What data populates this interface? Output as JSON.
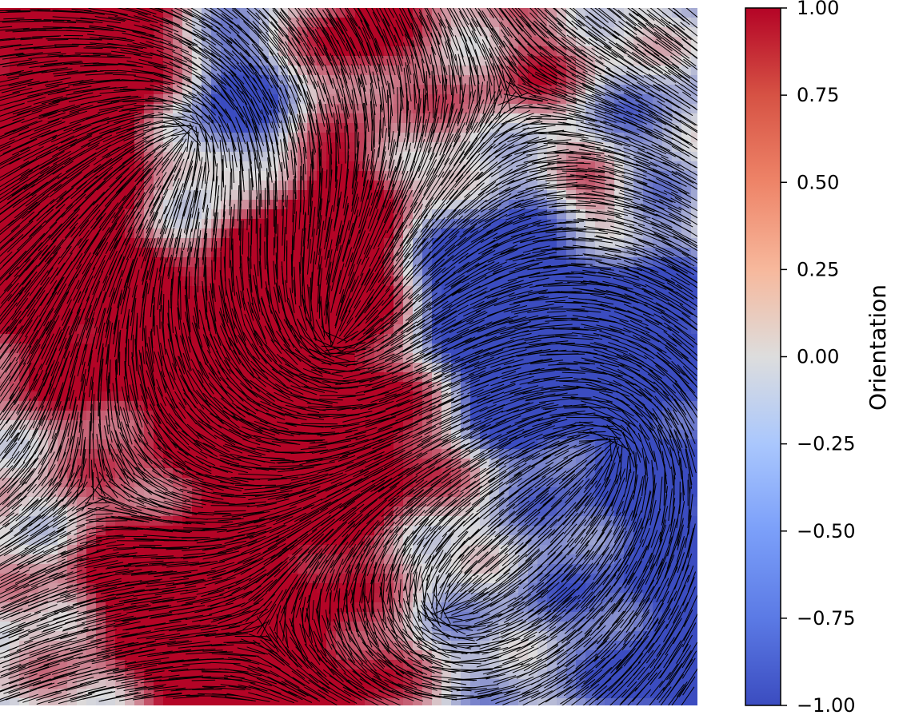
{
  "chart_data": {
    "type": "heatmap",
    "title": "",
    "xlabel": "",
    "ylabel": "",
    "description_overlay": "dense black line-segment vector field (director orientation) drawn over the color map",
    "colormap": "coolwarm",
    "colors": {
      "min": "#3b4cc0",
      "mid": "#dddddd",
      "max": "#b40426",
      "line": "#000000"
    },
    "colorbar": {
      "label": "Orientation",
      "range": [
        -1.0,
        1.0
      ],
      "ticks": [
        1.0,
        0.75,
        0.5,
        0.25,
        0.0,
        -0.25,
        -0.5,
        -0.75,
        -1.0
      ],
      "tick_labels": [
        "1.00",
        "0.75",
        "0.50",
        "0.25",
        "0.00",
        "−0.25",
        "−0.50",
        "−0.75",
        "−1.00"
      ],
      "placement": "right"
    },
    "axes_visible": false,
    "grid": false
  }
}
